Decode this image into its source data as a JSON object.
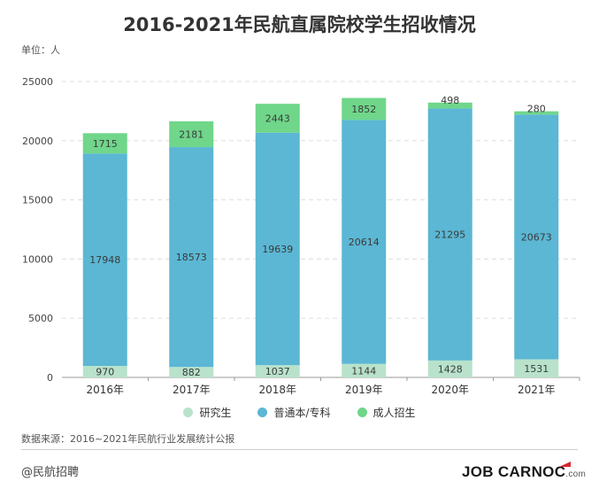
{
  "chart_data": {
    "type": "bar",
    "stacked": true,
    "title": "2016-2021年民航直属院校学生招收情况",
    "unit_label": "单位：人",
    "categories": [
      "2016年",
      "2017年",
      "2018年",
      "2019年",
      "2020年",
      "2021年"
    ],
    "series": [
      {
        "name": "研究生",
        "color": "#b8e2cb",
        "values": [
          970,
          882,
          1037,
          1144,
          1428,
          1531
        ]
      },
      {
        "name": "普通本/专科",
        "color": "#5bb7d4",
        "values": [
          17948,
          18573,
          19639,
          20614,
          21295,
          20673
        ]
      },
      {
        "name": "成人招生",
        "color": "#6fd68a",
        "values": [
          1715,
          2181,
          2443,
          1852,
          498,
          280
        ]
      }
    ],
    "ylim": [
      0,
      25000
    ],
    "yticks": [
      0,
      5000,
      10000,
      15000,
      20000,
      25000
    ],
    "grid": true,
    "legend_position": "bottom",
    "xlabel": "",
    "ylabel": ""
  },
  "footer": {
    "source": "数据来源：2016~2021年民航行业发展统计公报",
    "watermark": "@民航招聘",
    "brand_main": "JOB CARNOC",
    "brand_suffix": ".com"
  }
}
